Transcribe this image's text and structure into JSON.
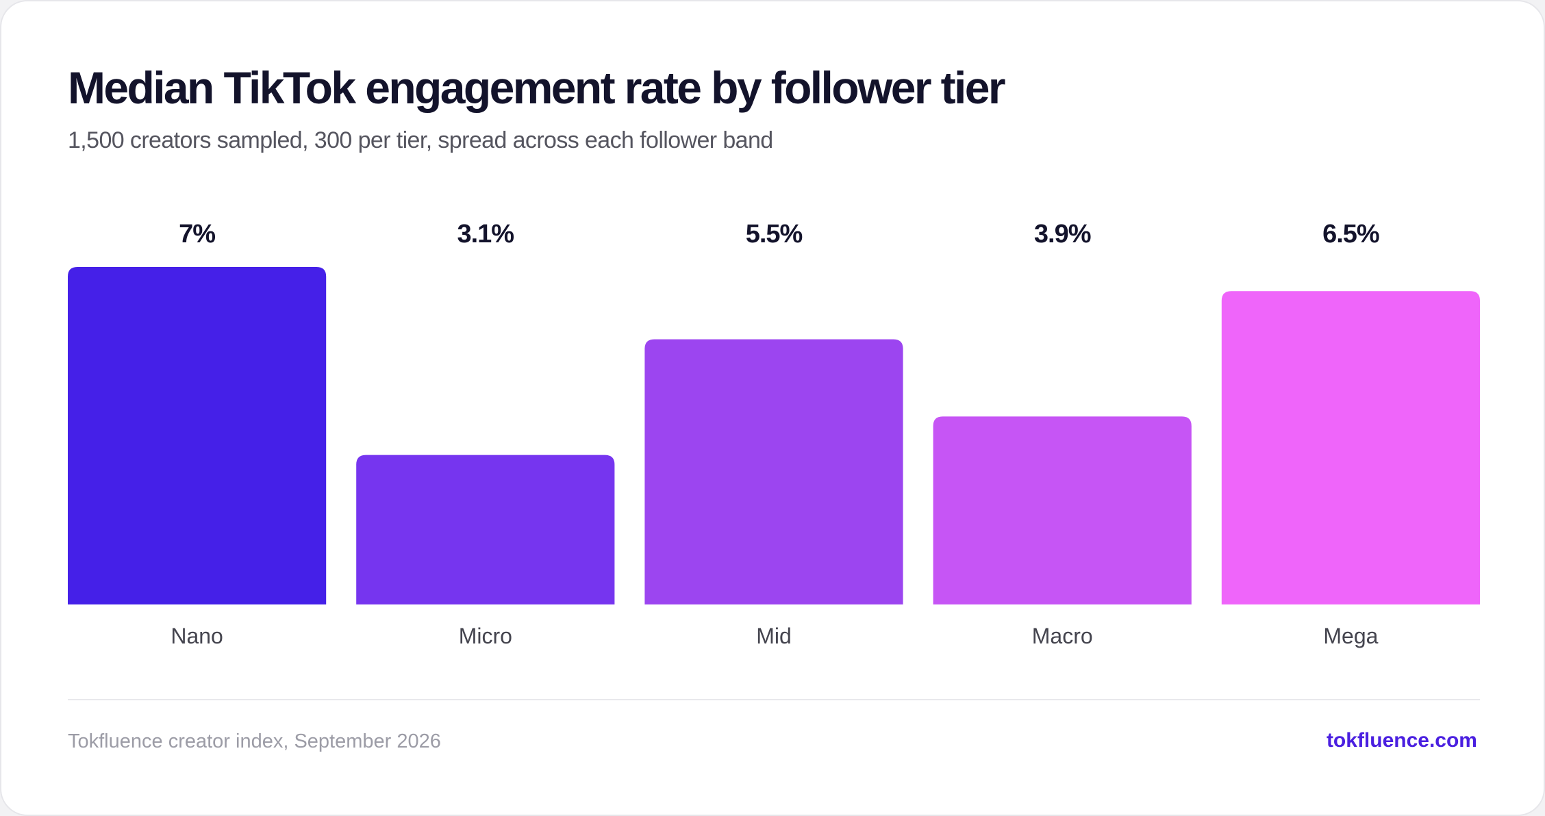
{
  "header": {
    "title": "Median TikTok engagement rate by follower tier",
    "subtitle": "1,500 creators sampled, 300 per tier, spread across each follower band"
  },
  "chart_data": {
    "type": "bar",
    "categories": [
      "Nano",
      "Micro",
      "Mid",
      "Macro",
      "Mega"
    ],
    "values": [
      7,
      3.1,
      5.5,
      3.9,
      6.5
    ],
    "value_labels": [
      "7%",
      "3.1%",
      "5.5%",
      "3.9%",
      "6.5%"
    ],
    "colors": [
      "#4520e8",
      "#7635ef",
      "#9c45f0",
      "#c655f5",
      "#ef65fa"
    ],
    "title": "Median TikTok engagement rate by follower tier",
    "xlabel": "",
    "ylabel": "",
    "ylim": [
      0,
      7
    ],
    "grid": false,
    "legend": "none"
  },
  "footer": {
    "source": "Tokfluence creator index, September 2026",
    "brand": "tokfluence.com"
  }
}
